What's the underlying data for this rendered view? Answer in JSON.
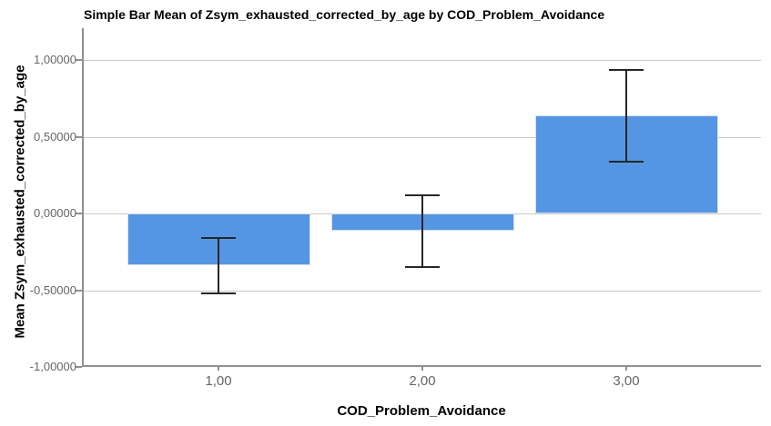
{
  "chart_data": {
    "type": "bar",
    "title": "Simple Bar Mean of Zsym_exhausted_corrected_by_age by COD_Problem_Avoidance",
    "xlabel": "COD_Problem_Avoidance",
    "ylabel": "Mean Zsym_exhausted_corrected_by_age",
    "categories": [
      "1,00",
      "2,00",
      "3,00"
    ],
    "values": [
      -0.34,
      -0.11,
      0.64
    ],
    "error_bars": {
      "upper": [
        -0.16,
        0.12,
        0.94
      ],
      "lower": [
        -0.52,
        -0.35,
        0.34
      ]
    },
    "yticks": [
      {
        "value": 1.0,
        "label": "1,00000"
      },
      {
        "value": 0.5,
        "label": "0,50000"
      },
      {
        "value": 0.0,
        "label": "0,00000"
      },
      {
        "value": -0.5,
        "label": "-0,50000"
      },
      {
        "value": -1.0,
        "label": "-1,00000"
      }
    ],
    "ylim": [
      -1.0,
      1.21
    ],
    "grid": true,
    "legend": "none",
    "colors": {
      "bar": "#5596e4",
      "error_bar": "#262626",
      "gridline": "#c9c9c9",
      "axis_line": "#909090",
      "tick_label": "#666666",
      "title_text": "#000000"
    }
  }
}
